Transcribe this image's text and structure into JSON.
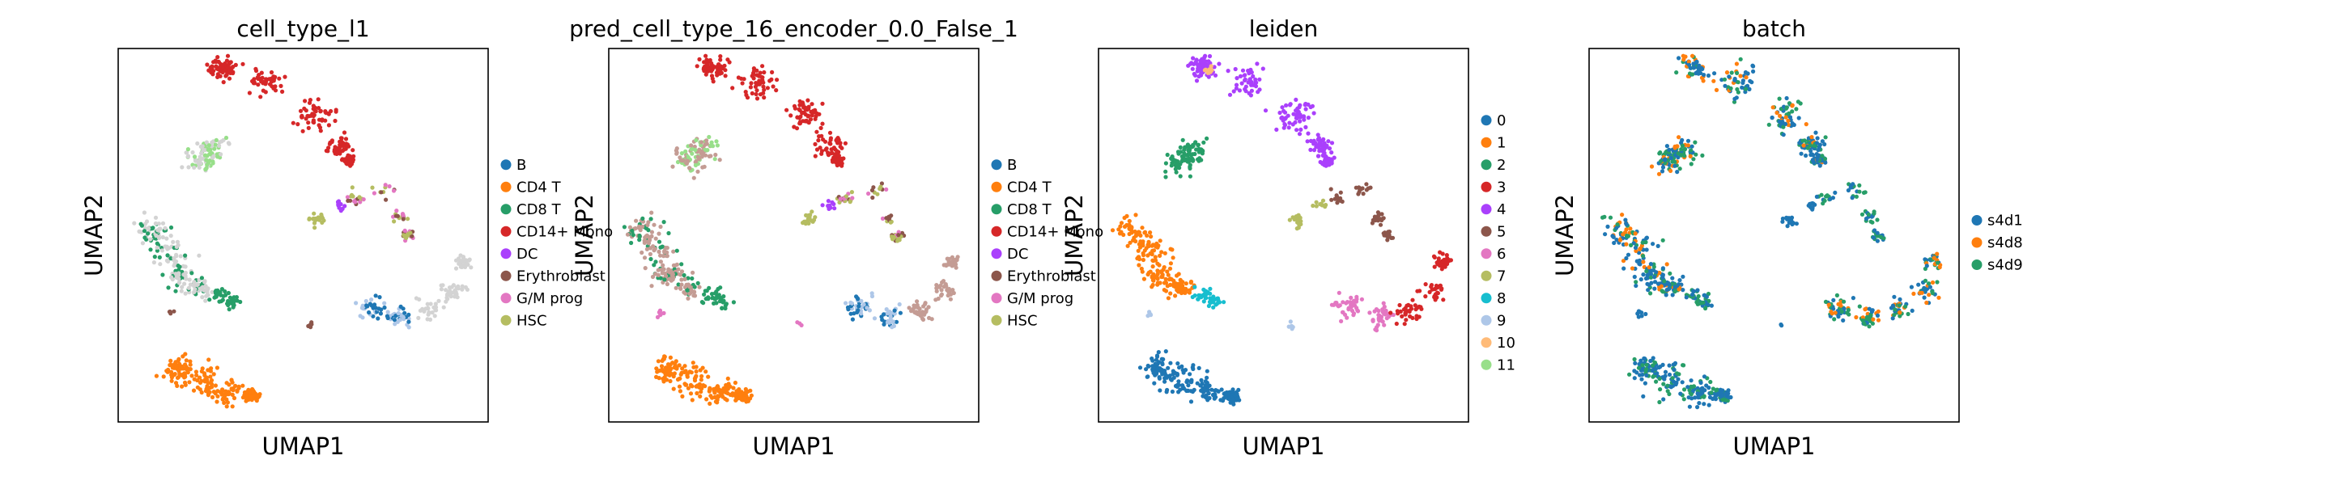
{
  "chart_data": [
    {
      "type": "scatter",
      "title": "cell_type_l1",
      "xlabel": "UMAP1",
      "ylabel": "UMAP2",
      "legend_placement": "right",
      "grid": false,
      "legend": [
        {
          "label": "B",
          "color": "#1f77b4"
        },
        {
          "label": "CD4 T",
          "color": "#ff7f0e"
        },
        {
          "label": "CD8 T",
          "color": "#279e68"
        },
        {
          "label": "CD14+ Mono",
          "color": "#d62728"
        },
        {
          "label": "DC",
          "color": "#aa40fc"
        },
        {
          "label": "Erythroblast",
          "color": "#8c564b"
        },
        {
          "label": "G/M prog",
          "color": "#e377c2"
        },
        {
          "label": "HSC",
          "color": "#b5bd61"
        }
      ]
    },
    {
      "type": "scatter",
      "title": "pred_cell_type_16_encoder_0.0_False_1",
      "xlabel": "UMAP1",
      "ylabel": "UMAP2",
      "legend_placement": "right",
      "grid": false,
      "legend": [
        {
          "label": "B",
          "color": "#1f77b4"
        },
        {
          "label": "CD4 T",
          "color": "#ff7f0e"
        },
        {
          "label": "CD8 T",
          "color": "#279e68"
        },
        {
          "label": "CD14+ Mono",
          "color": "#d62728"
        },
        {
          "label": "DC",
          "color": "#aa40fc"
        },
        {
          "label": "Erythroblast",
          "color": "#8c564b"
        },
        {
          "label": "G/M prog",
          "color": "#e377c2"
        },
        {
          "label": "HSC",
          "color": "#b5bd61"
        }
      ]
    },
    {
      "type": "scatter",
      "title": "leiden",
      "xlabel": "UMAP1",
      "ylabel": "UMAP2",
      "legend_placement": "right",
      "grid": false,
      "legend": [
        {
          "label": "0",
          "color": "#1f77b4"
        },
        {
          "label": "1",
          "color": "#ff7f0e"
        },
        {
          "label": "2",
          "color": "#279e68"
        },
        {
          "label": "3",
          "color": "#d62728"
        },
        {
          "label": "4",
          "color": "#aa40fc"
        },
        {
          "label": "5",
          "color": "#8c564b"
        },
        {
          "label": "6",
          "color": "#e377c2"
        },
        {
          "label": "7",
          "color": "#b5bd61"
        },
        {
          "label": "8",
          "color": "#17becf"
        },
        {
          "label": "9",
          "color": "#aec7e8"
        },
        {
          "label": "10",
          "color": "#ffbb78"
        },
        {
          "label": "11",
          "color": "#98df8a"
        }
      ]
    },
    {
      "type": "scatter",
      "title": "batch",
      "xlabel": "UMAP1",
      "ylabel": "UMAP2",
      "legend_placement": "right",
      "grid": false,
      "legend": [
        {
          "label": "s4d1",
          "color": "#1f77b4"
        },
        {
          "label": "s4d8",
          "color": "#ff7f0e"
        },
        {
          "label": "s4d9",
          "color": "#279e68"
        }
      ]
    }
  ]
}
